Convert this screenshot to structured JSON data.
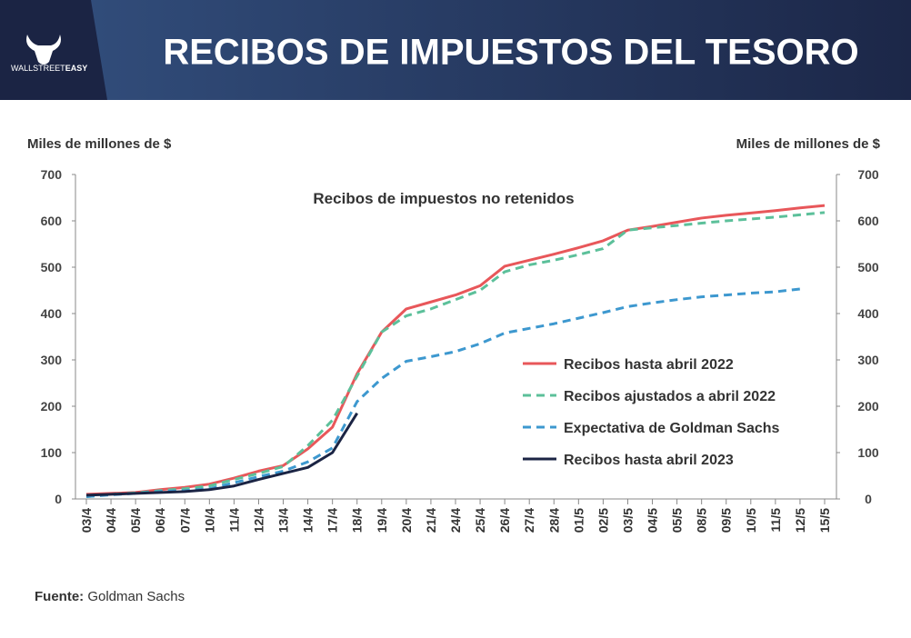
{
  "header": {
    "title": "RECIBOS DE IMPUESTOS DEL TESORO",
    "logo_text": [
      "WALLSTREET",
      "EASY"
    ]
  },
  "chart_data": {
    "type": "line",
    "subtitle": "Recibos de impuestos no retenidos",
    "y_label": "Miles de millones de $",
    "y2_label": "Miles de millones de $",
    "categories": [
      "03/4",
      "04/4",
      "05/4",
      "06/4",
      "07/4",
      "10/4",
      "11/4",
      "12/4",
      "13/4",
      "14/4",
      "17/4",
      "18/4",
      "19/4",
      "20/4",
      "21/4",
      "24/4",
      "25/4",
      "26/4",
      "27/4",
      "28/4",
      "01/5",
      "02/5",
      "03/5",
      "04/5",
      "05/5",
      "08/5",
      "09/5",
      "10/5",
      "11/5",
      "12/5",
      "15/5"
    ],
    "series": [
      {
        "name": "Recibos hasta abril 2022",
        "color": "#e8575a",
        "dash": false,
        "values": [
          10,
          12,
          14,
          20,
          25,
          32,
          45,
          60,
          72,
          108,
          155,
          270,
          360,
          410,
          425,
          440,
          460,
          502,
          515,
          528,
          542,
          557,
          580,
          588,
          597,
          606,
          612,
          617,
          622,
          628,
          633
        ]
      },
      {
        "name": "Recibos ajustados a abril 2022",
        "color": "#5cc09a",
        "dash": true,
        "values": [
          5,
          10,
          13,
          18,
          22,
          28,
          42,
          55,
          70,
          115,
          170,
          265,
          360,
          395,
          410,
          430,
          450,
          490,
          505,
          515,
          527,
          540,
          580,
          585,
          590,
          595,
          600,
          604,
          608,
          613,
          618
        ]
      },
      {
        "name": "Expectativa de Goldman Sachs",
        "color": "#3d98cf",
        "dash": true,
        "values": [
          5,
          9,
          12,
          16,
          18,
          22,
          35,
          48,
          60,
          80,
          110,
          210,
          260,
          297,
          307,
          318,
          335,
          358,
          368,
          378,
          390,
          402,
          415,
          423,
          430,
          436,
          440,
          444,
          447,
          453,
          null
        ]
      },
      {
        "name": "Recibos hasta abril 2023",
        "color": "#1b2444",
        "dash": false,
        "values": [
          8,
          10,
          12,
          14,
          16,
          20,
          28,
          42,
          55,
          68,
          100,
          185,
          null,
          null,
          null,
          null,
          null,
          null,
          null,
          null,
          null,
          null,
          null,
          null,
          null,
          null,
          null,
          null,
          null,
          null,
          null
        ]
      }
    ],
    "ylim": [
      0,
      700
    ],
    "yticks": [
      0,
      100,
      200,
      300,
      400,
      500,
      600,
      700
    ],
    "y2lim": [
      0,
      700
    ],
    "y2ticks": [
      0,
      100,
      200,
      300,
      400,
      500,
      600,
      700
    ],
    "legend": "right"
  },
  "footer": {
    "label": "Fuente:",
    "text": "Goldman Sachs"
  }
}
